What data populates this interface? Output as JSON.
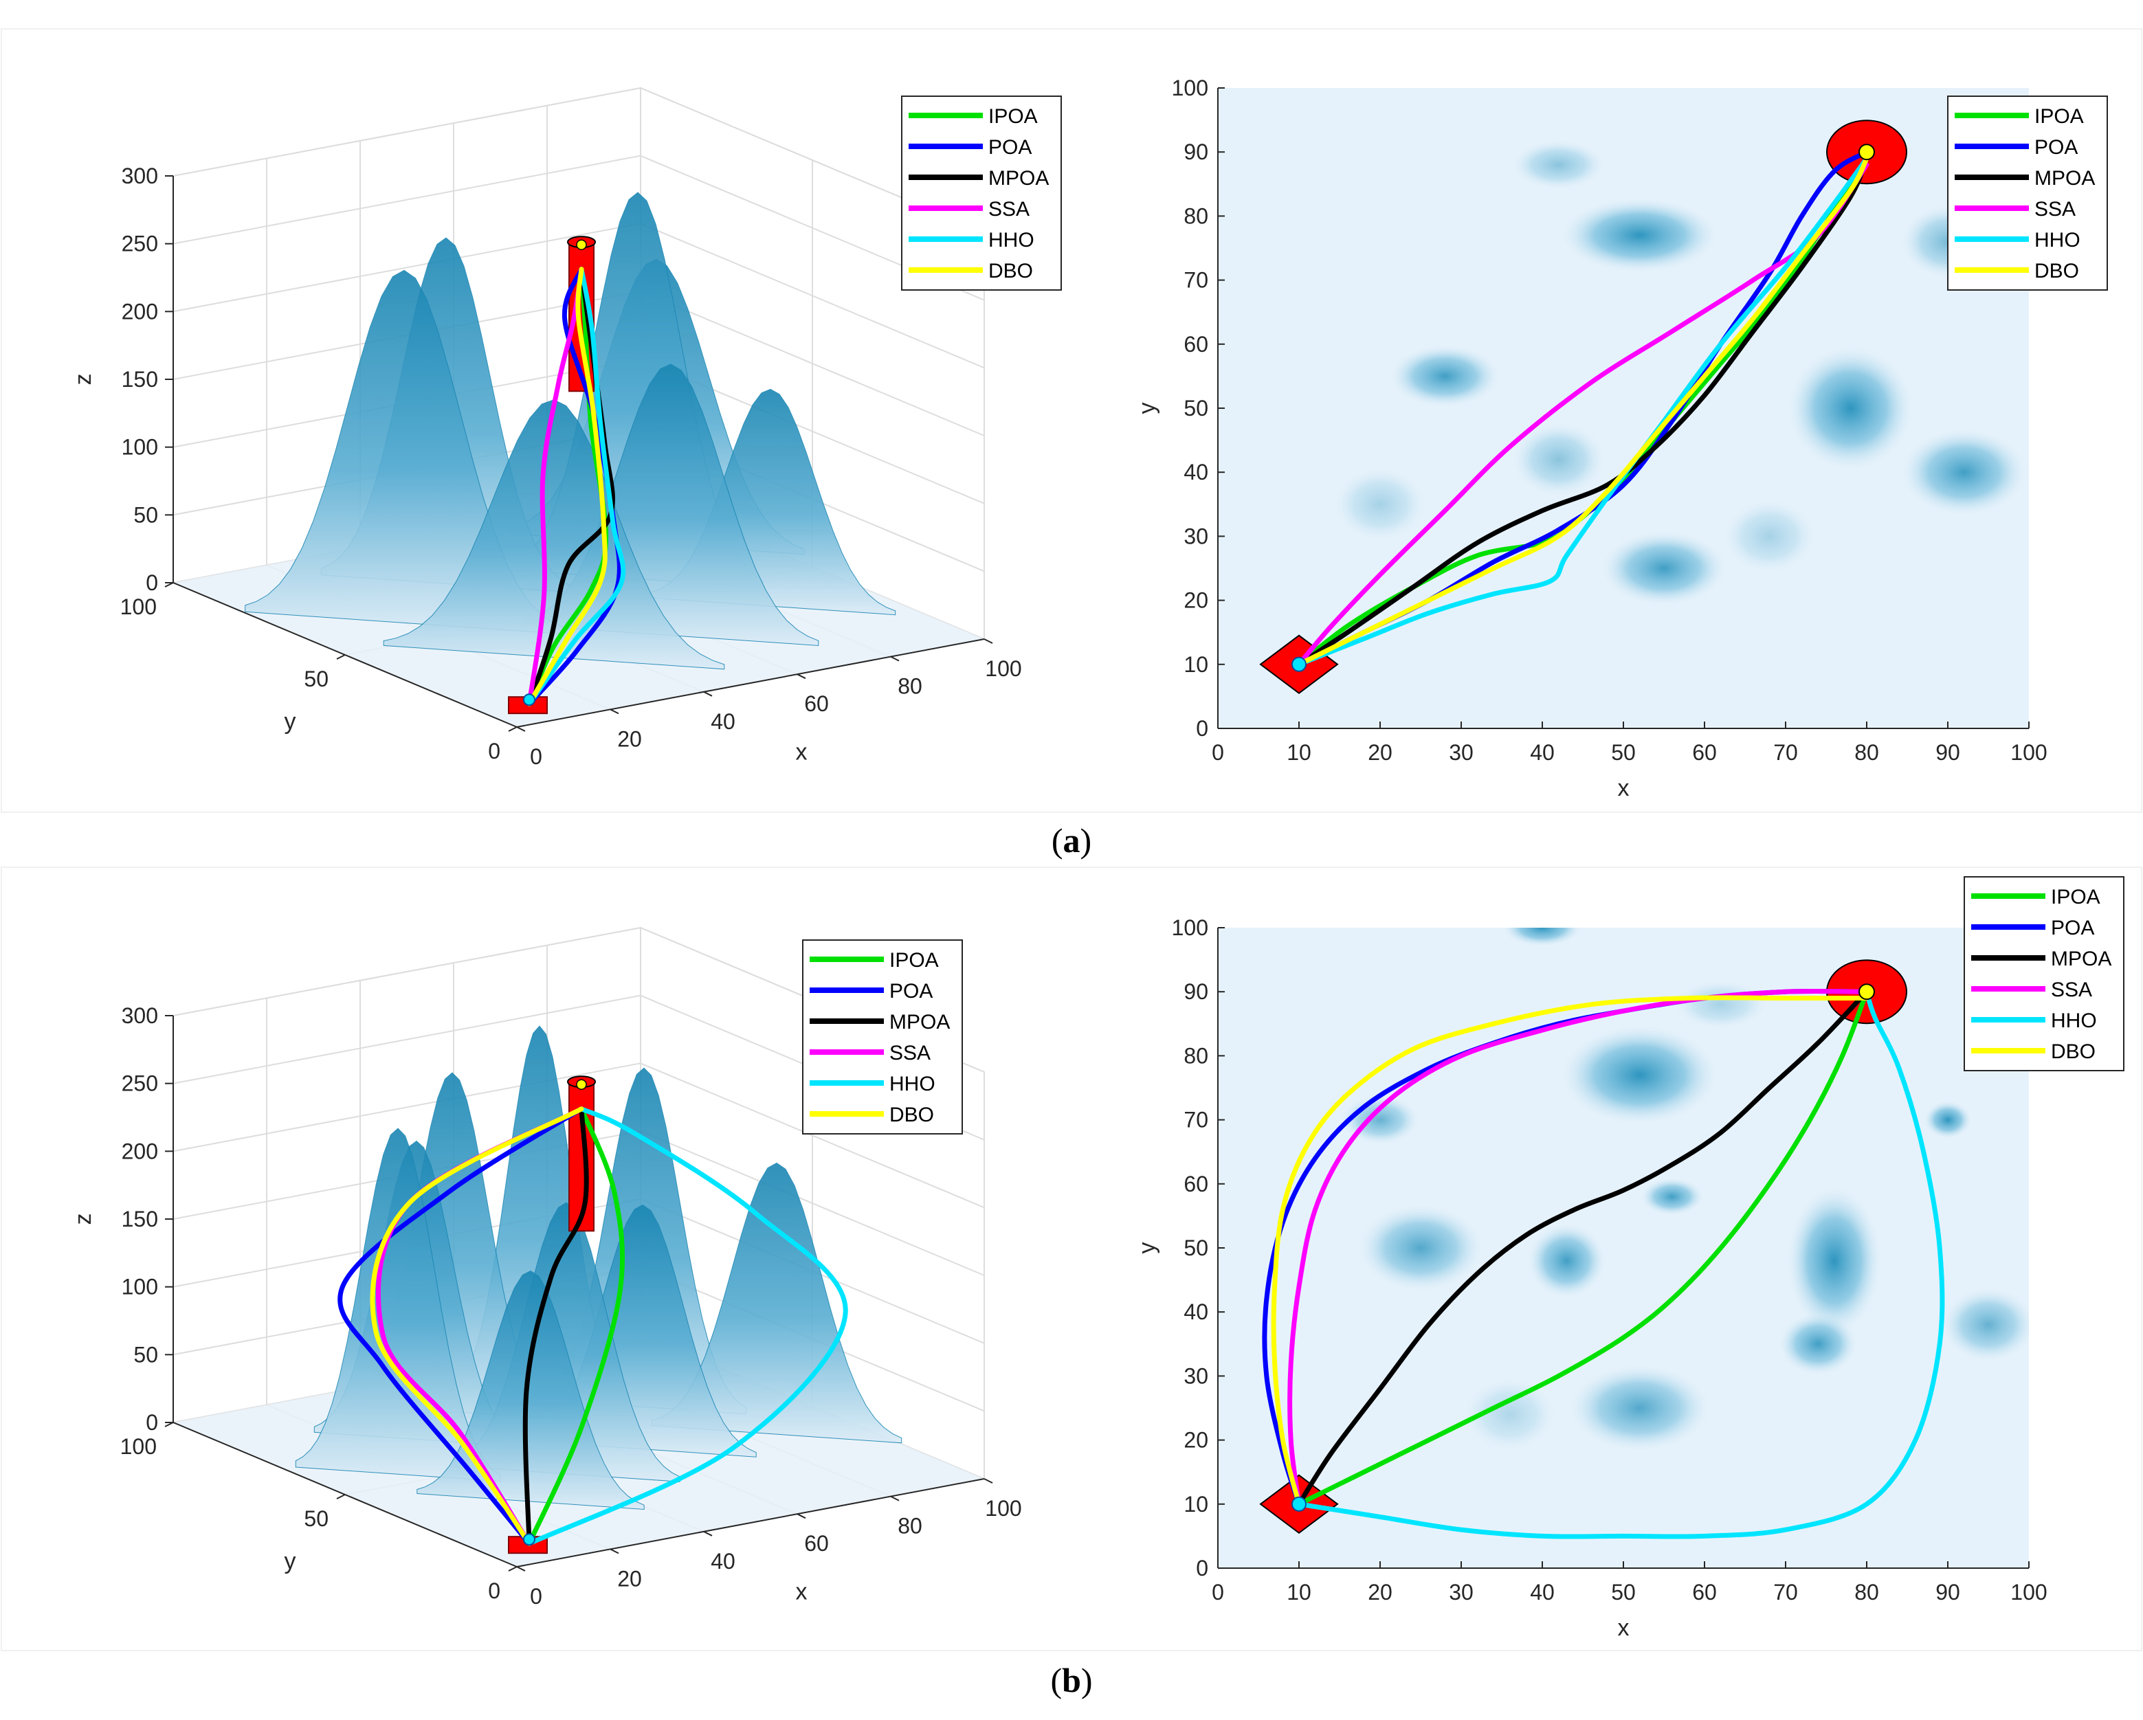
{
  "captions": {
    "a": "a",
    "b": "b"
  },
  "legend_entries": [
    "IPOA",
    "POA",
    "MPOA",
    "SSA",
    "HHO",
    "DBO"
  ],
  "series_colors": {
    "IPOA": "#00e000",
    "POA": "#0000ff",
    "MPOA": "#000000",
    "SSA": "#ff00ff",
    "HHO": "#00e5ff",
    "DBO": "#ffff00"
  },
  "terrain_color": "#1a8bb8",
  "marker_color": "#ff0000",
  "chart_data": [
    {
      "panel": "a-3d",
      "type": "line",
      "view": "3d",
      "xlabel": "x",
      "ylabel": "y",
      "zlabel": "z",
      "xlim": [
        0,
        100
      ],
      "ylim": [
        0,
        100
      ],
      "zlim": [
        0,
        300
      ],
      "xticks": [
        "0",
        "20",
        "40",
        "60",
        "80",
        "100"
      ],
      "yticks": [
        "0",
        "50",
        "100"
      ],
      "zticks": [
        "0",
        "50",
        "100",
        "150",
        "200",
        "250",
        "300"
      ],
      "legend": "top-right",
      "start": [
        10,
        10,
        0
      ],
      "goal": [
        80,
        90,
        190
      ],
      "series": [
        {
          "name": "IPOA",
          "points": [
            [
              10,
              10,
              0
            ],
            [
              24,
              22,
              20
            ],
            [
              38,
              30,
              45
            ],
            [
              47,
              38,
              70
            ],
            [
              60,
              60,
              120
            ],
            [
              72,
              78,
              165
            ],
            [
              80,
              90,
              190
            ]
          ]
        },
        {
          "name": "POA",
          "points": [
            [
              10,
              10,
              0
            ],
            [
              26,
              18,
              20
            ],
            [
              42,
              28,
              45
            ],
            [
              50,
              40,
              80
            ],
            [
              62,
              62,
              125
            ],
            [
              72,
              84,
              165
            ],
            [
              80,
              90,
              190
            ]
          ]
        },
        {
          "name": "MPOA",
          "points": [
            [
              10,
              10,
              0
            ],
            [
              22,
              20,
              30
            ],
            [
              36,
              34,
              60
            ],
            [
              48,
              38,
              85
            ],
            [
              60,
              56,
              110
            ],
            [
              72,
              76,
              150
            ],
            [
              80,
              90,
              190
            ]
          ]
        },
        {
          "name": "SSA",
          "points": [
            [
              10,
              10,
              0
            ],
            [
              22,
              22,
              60
            ],
            [
              35,
              40,
              120
            ],
            [
              50,
              56,
              160
            ],
            [
              65,
              72,
              180
            ],
            [
              80,
              90,
              190
            ]
          ]
        },
        {
          "name": "HHO",
          "points": [
            [
              10,
              10,
              0
            ],
            [
              25,
              17,
              30
            ],
            [
              40,
              24,
              55
            ],
            [
              50,
              40,
              75
            ],
            [
              62,
              60,
              120
            ],
            [
              72,
              76,
              165
            ],
            [
              80,
              90,
              190
            ]
          ]
        },
        {
          "name": "DBO",
          "points": [
            [
              10,
              10,
              0
            ],
            [
              25,
              20,
              25
            ],
            [
              40,
              30,
              50
            ],
            [
              48,
              40,
              75
            ],
            [
              62,
              62,
              125
            ],
            [
              72,
              80,
              170
            ],
            [
              80,
              90,
              190
            ]
          ]
        }
      ]
    },
    {
      "panel": "a-2d",
      "type": "line",
      "xlabel": "x",
      "ylabel": "y",
      "xlim": [
        0,
        100
      ],
      "ylim": [
        0,
        100
      ],
      "xticks": [
        "0",
        "10",
        "20",
        "30",
        "40",
        "50",
        "60",
        "70",
        "80",
        "90",
        "100"
      ],
      "yticks": [
        "0",
        "10",
        "20",
        "30",
        "40",
        "50",
        "60",
        "70",
        "80",
        "90",
        "100"
      ],
      "legend": "top-right",
      "start": [
        10,
        10
      ],
      "goal": [
        80,
        90
      ],
      "series": [
        {
          "name": "IPOA",
          "x": [
            10,
            16,
            24,
            32,
            40,
            44,
            50,
            56,
            62,
            68,
            74,
            80
          ],
          "y": [
            10,
            16,
            22,
            27,
            29,
            32,
            39,
            48,
            57,
            66,
            77,
            89
          ]
        },
        {
          "name": "POA",
          "x": [
            10,
            18,
            26,
            34,
            42,
            50,
            56,
            62,
            68,
            72,
            76,
            80
          ],
          "y": [
            10,
            15,
            20,
            26,
            31,
            38,
            48,
            60,
            71,
            80,
            87,
            90
          ]
        },
        {
          "name": "MPOA",
          "x": [
            10,
            16,
            24,
            32,
            40,
            48,
            54,
            60,
            66,
            72,
            78,
            80
          ],
          "y": [
            10,
            15,
            22,
            29,
            34,
            38,
            44,
            52,
            62,
            72,
            83,
            89
          ]
        },
        {
          "name": "SSA",
          "x": [
            10,
            14,
            20,
            28,
            36,
            46,
            56,
            66,
            74,
            80
          ],
          "y": [
            10,
            16,
            24,
            34,
            44,
            54,
            62,
            70,
            77,
            88
          ]
        },
        {
          "name": "HHO",
          "x": [
            10,
            18,
            26,
            34,
            41,
            43,
            48,
            55,
            62,
            70,
            76,
            80
          ],
          "y": [
            10,
            14,
            18,
            21,
            23,
            27,
            36,
            48,
            60,
            72,
            82,
            89
          ]
        },
        {
          "name": "DBO",
          "x": [
            10,
            18,
            26,
            34,
            42,
            48,
            54,
            60,
            66,
            72,
            78,
            80
          ],
          "y": [
            10,
            15,
            20,
            25,
            30,
            37,
            46,
            55,
            64,
            74,
            84,
            89
          ]
        }
      ]
    },
    {
      "panel": "b-3d",
      "type": "line",
      "view": "3d",
      "xlabel": "x",
      "ylabel": "y",
      "zlabel": "z",
      "xlim": [
        0,
        100
      ],
      "ylim": [
        0,
        100
      ],
      "zlim": [
        0,
        300
      ],
      "xticks": [
        "0",
        "20",
        "40",
        "60",
        "80",
        "100"
      ],
      "yticks": [
        "0",
        "50",
        "100"
      ],
      "zticks": [
        "0",
        "50",
        "100",
        "150",
        "200",
        "250",
        "300"
      ],
      "legend": "top-right",
      "start": [
        10,
        10,
        0
      ],
      "goal": [
        80,
        90,
        190
      ],
      "series": [
        {
          "name": "IPOA",
          "points": [
            [
              10,
              10,
              0
            ],
            [
              30,
              22,
              60
            ],
            [
              50,
              38,
              130
            ],
            [
              65,
              60,
              170
            ],
            [
              80,
              90,
              190
            ]
          ]
        },
        {
          "name": "POA",
          "points": [
            [
              10,
              10,
              0
            ],
            [
              8,
              25,
              40
            ],
            [
              8,
              50,
              90
            ],
            [
              20,
              78,
              110
            ],
            [
              50,
              88,
              150
            ],
            [
              80,
              90,
              190
            ]
          ]
        },
        {
          "name": "MPOA",
          "points": [
            [
              10,
              10,
              0
            ],
            [
              30,
              38,
              70
            ],
            [
              50,
              58,
              120
            ],
            [
              66,
              70,
              150
            ],
            [
              80,
              90,
              190
            ]
          ]
        },
        {
          "name": "SSA",
          "points": [
            [
              10,
              10,
              0
            ],
            [
              10,
              30,
              60
            ],
            [
              14,
              58,
              100
            ],
            [
              40,
              86,
              150
            ],
            [
              80,
              90,
              190
            ]
          ]
        },
        {
          "name": "HHO",
          "points": [
            [
              10,
              10,
              0
            ],
            [
              50,
              5,
              50
            ],
            [
              85,
              20,
              110
            ],
            [
              88,
              50,
              150
            ],
            [
              84,
              80,
              180
            ],
            [
              80,
              90,
              190
            ]
          ]
        },
        {
          "name": "DBO",
          "points": [
            [
              10,
              10,
              0
            ],
            [
              9,
              28,
              55
            ],
            [
              14,
              60,
              100
            ],
            [
              40,
              86,
              150
            ],
            [
              80,
              90,
              190
            ]
          ]
        }
      ]
    },
    {
      "panel": "b-2d",
      "type": "line",
      "xlabel": "x",
      "ylabel": "y",
      "xlim": [
        0,
        100
      ],
      "ylim": [
        0,
        100
      ],
      "xticks": [
        "0",
        "10",
        "20",
        "30",
        "40",
        "50",
        "60",
        "70",
        "80",
        "90",
        "100"
      ],
      "yticks": [
        "0",
        "10",
        "20",
        "30",
        "40",
        "50",
        "60",
        "70",
        "80",
        "90",
        "100"
      ],
      "legend": "top-right",
      "start": [
        10,
        10
      ],
      "goal": [
        80,
        90
      ],
      "series": [
        {
          "name": "IPOA",
          "x": [
            10,
            18,
            26,
            34,
            42,
            50,
            56,
            62,
            68,
            73,
            77,
            80
          ],
          "y": [
            10,
            15,
            20,
            25,
            30,
            36,
            42,
            50,
            60,
            70,
            80,
            90
          ]
        },
        {
          "name": "POA",
          "x": [
            10,
            8,
            6,
            6,
            8,
            12,
            18,
            26,
            34,
            42,
            50,
            60,
            70,
            80
          ],
          "y": [
            10,
            18,
            30,
            42,
            54,
            64,
            72,
            78,
            82,
            85,
            87,
            89,
            90,
            90
          ]
        },
        {
          "name": "MPOA",
          "x": [
            10,
            14,
            20,
            26,
            32,
            38,
            44,
            50,
            56,
            62,
            68,
            74,
            80
          ],
          "y": [
            10,
            18,
            28,
            38,
            46,
            52,
            56,
            59,
            63,
            68,
            75,
            82,
            90
          ]
        },
        {
          "name": "SSA",
          "x": [
            10,
            9,
            9,
            10,
            12,
            16,
            22,
            30,
            40,
            50,
            60,
            70,
            80
          ],
          "y": [
            10,
            20,
            32,
            44,
            56,
            66,
            74,
            80,
            84,
            87,
            89,
            90,
            90
          ]
        },
        {
          "name": "HHO",
          "x": [
            10,
            20,
            30,
            40,
            50,
            60,
            70,
            80,
            86,
            89,
            89,
            87,
            84,
            81,
            80
          ],
          "y": [
            10,
            8,
            6,
            5,
            5,
            5,
            6,
            10,
            20,
            35,
            50,
            65,
            78,
            86,
            90
          ]
        },
        {
          "name": "DBO",
          "x": [
            10,
            8,
            7,
            7,
            8,
            11,
            16,
            24,
            34,
            46,
            58,
            70,
            80
          ],
          "y": [
            10,
            20,
            32,
            44,
            56,
            66,
            74,
            81,
            85,
            88,
            89,
            89,
            89
          ]
        }
      ]
    }
  ]
}
